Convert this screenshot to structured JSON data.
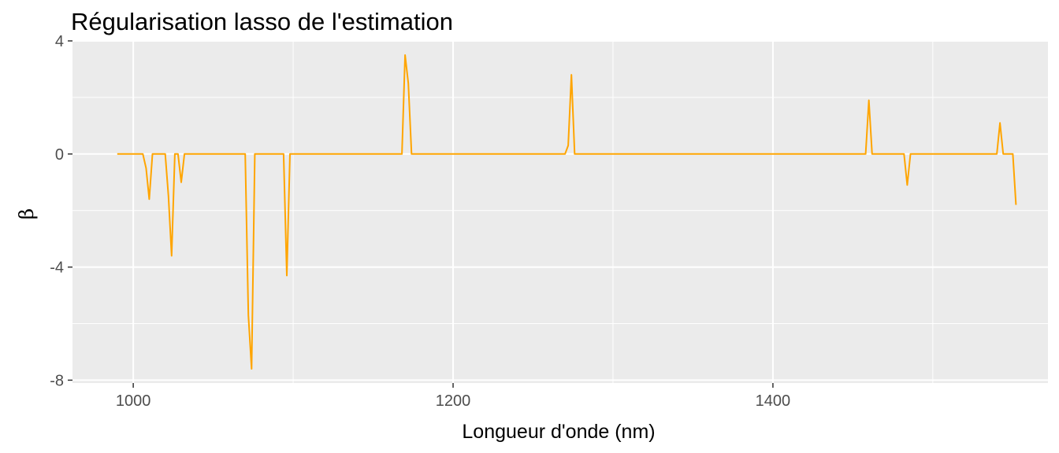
{
  "chart_data": {
    "type": "line",
    "title": "Régularisation lasso de l'estimation",
    "xlabel": "Longueur d'onde (nm)",
    "ylabel": "β",
    "xlim": [
      962,
      1572
    ],
    "ylim": [
      -8.1,
      4.0
    ],
    "x_ticks": [
      {
        "value": 1000,
        "label": "1000"
      },
      {
        "value": 1200,
        "label": "1200"
      },
      {
        "value": 1400,
        "label": "1400"
      }
    ],
    "x_minor_ticks": [
      1100,
      1300,
      1500
    ],
    "y_ticks": [
      {
        "value": 4,
        "label": "4"
      },
      {
        "value": 0,
        "label": "0"
      },
      {
        "value": -4,
        "label": "-4"
      },
      {
        "value": -8,
        "label": "-8"
      }
    ],
    "y_minor_ticks": [
      2,
      -2,
      -6
    ],
    "grid": true,
    "legend": "none",
    "panel_color": "#ebebeb",
    "grid_color": "#ffffff",
    "series": [
      {
        "color": "#ffa500",
        "x": [
          990,
          1006,
          1008,
          1010,
          1012,
          1020,
          1022,
          1024,
          1026,
          1028,
          1030,
          1032,
          1070,
          1072,
          1074,
          1076,
          1094,
          1096,
          1098,
          1168,
          1170,
          1172,
          1174,
          1178,
          1270,
          1272,
          1274,
          1276,
          1458,
          1460,
          1462,
          1464,
          1482,
          1484,
          1486,
          1540,
          1542,
          1544,
          1546,
          1550,
          1552
        ],
        "y": [
          0,
          0,
          -0.5,
          -1.6,
          0,
          0,
          -1.5,
          -3.6,
          0,
          0,
          -1.0,
          0,
          0,
          -5.7,
          -7.6,
          0,
          0,
          -4.3,
          0,
          0,
          3.5,
          2.5,
          0,
          0,
          0,
          0.3,
          2.8,
          0,
          0,
          1.9,
          0,
          0,
          0,
          -1.1,
          0,
          0,
          1.1,
          0,
          0,
          0,
          -1.8
        ]
      }
    ]
  }
}
